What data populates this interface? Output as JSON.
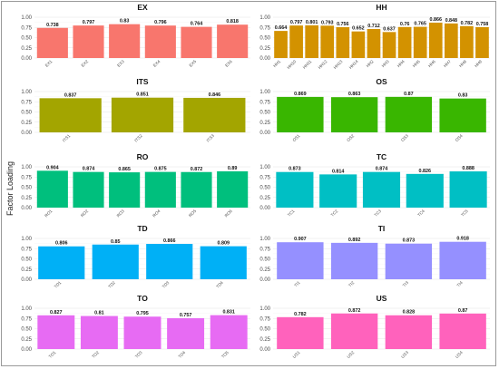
{
  "chart_data": {
    "type": "bar",
    "ylabel": "Factor Loading",
    "ylim": [
      0,
      1.0
    ],
    "yticks": [
      "0.00",
      "0.25",
      "0.50",
      "0.75",
      "1.00"
    ],
    "panels": [
      {
        "title": "EX",
        "color": "#f8766d",
        "categories": [
          "EX1",
          "EX2",
          "EX3",
          "EX4",
          "EX5",
          "EX6"
        ],
        "values": [
          0.738,
          0.797,
          0.83,
          0.796,
          0.764,
          0.818
        ],
        "labels": [
          "0.738",
          "0.797",
          "0.83",
          "0.796",
          "0.764",
          "0.818"
        ]
      },
      {
        "title": "HH",
        "color": "#d39200",
        "categories": [
          "HH1",
          "HH10",
          "HH11",
          "HH12",
          "HH13",
          "HH14",
          "HH2",
          "HH3",
          "HH4",
          "HH5",
          "HH6",
          "HH7",
          "HH8",
          "HH9"
        ],
        "values": [
          0.664,
          0.797,
          0.801,
          0.793,
          0.756,
          0.652,
          0.712,
          0.637,
          0.76,
          0.765,
          0.866,
          0.848,
          0.782,
          0.758
        ],
        "labels": [
          "0.664",
          "0.797",
          "0.801",
          "0.793",
          "0.756",
          "0.652",
          "0.712",
          "0.637",
          "0.76",
          "0.765",
          "0.866",
          "0.848",
          "0.782",
          "0.758"
        ]
      },
      {
        "title": "ITS",
        "color": "#a3a500",
        "categories": [
          "ITS1",
          "ITS2",
          "ITS3"
        ],
        "values": [
          0.837,
          0.851,
          0.846
        ],
        "labels": [
          "0.837",
          "0.851",
          "0.846"
        ]
      },
      {
        "title": "OS",
        "color": "#39b600",
        "categories": [
          "OS1",
          "OS2",
          "OS3",
          "OS4"
        ],
        "values": [
          0.869,
          0.863,
          0.87,
          0.83
        ],
        "labels": [
          "0.869",
          "0.863",
          "0.87",
          "0.83"
        ]
      },
      {
        "title": "RO",
        "color": "#00bf7d",
        "categories": [
          "RO1",
          "RO2",
          "RO3",
          "RO4",
          "RO5",
          "RO6"
        ],
        "values": [
          0.904,
          0.874,
          0.865,
          0.875,
          0.872,
          0.89
        ],
        "labels": [
          "0.904",
          "0.874",
          "0.865",
          "0.875",
          "0.872",
          "0.89"
        ]
      },
      {
        "title": "TC",
        "color": "#00bfc4",
        "categories": [
          "TC1",
          "TC2",
          "TC3",
          "TC4",
          "TC5"
        ],
        "values": [
          0.873,
          0.814,
          0.874,
          0.826,
          0.888
        ],
        "labels": [
          "0.873",
          "0.814",
          "0.874",
          "0.826",
          "0.888"
        ]
      },
      {
        "title": "TD",
        "color": "#00b0f6",
        "categories": [
          "TD1",
          "TD2",
          "TD3",
          "TD4"
        ],
        "values": [
          0.806,
          0.85,
          0.866,
          0.809
        ],
        "labels": [
          "0.806",
          "0.85",
          "0.866",
          "0.809"
        ]
      },
      {
        "title": "TI",
        "color": "#9590ff",
        "categories": [
          "TI1",
          "TI2",
          "TI3",
          "TI4"
        ],
        "values": [
          0.907,
          0.892,
          0.873,
          0.918
        ],
        "labels": [
          "0.907",
          "0.892",
          "0.873",
          "0.918"
        ]
      },
      {
        "title": "TO",
        "color": "#e76bf3",
        "categories": [
          "TO1",
          "TO2",
          "TO3",
          "TO4",
          "TO5"
        ],
        "values": [
          0.827,
          0.81,
          0.795,
          0.757,
          0.831
        ],
        "labels": [
          "0.827",
          "0.81",
          "0.795",
          "0.757",
          "0.831"
        ]
      },
      {
        "title": "US",
        "color": "#ff62bc",
        "categories": [
          "US1",
          "US2",
          "US3",
          "US4"
        ],
        "values": [
          0.782,
          0.872,
          0.828,
          0.87
        ],
        "labels": [
          "0.782",
          "0.872",
          "0.828",
          "0.87"
        ]
      }
    ]
  }
}
